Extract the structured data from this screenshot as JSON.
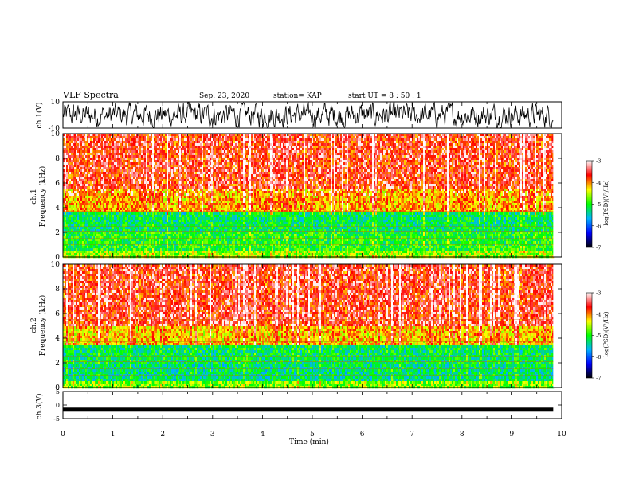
{
  "header": {
    "title": "VLF Spectra",
    "date": "Sep. 23, 2020",
    "station": "station= KAP",
    "start_ut": "start  UT =   8 : 50 : 1"
  },
  "chart_data": [
    {
      "type": "line",
      "panel": "ch1-waveform",
      "ylabel": "ch.1(V)",
      "ylim": [
        -10,
        10
      ],
      "y_ticks": [
        "10",
        "-10"
      ],
      "x_range_min": [
        0,
        9.83
      ],
      "note_values": "dense noisy waveform centred near 0 V oscillating mostly between -8 and 8 V"
    },
    {
      "type": "heatmap",
      "panel": "ch1-spectrogram",
      "ylabel": "ch.1\nFrequency  (kHz)",
      "ylabel_lines": [
        "ch.1",
        "Frequency  (kHz)"
      ],
      "ylim": [
        0,
        10
      ],
      "y_ticks": [
        "0",
        "2",
        "4",
        "6",
        "8",
        "10"
      ],
      "colorbar": {
        "label": "log(PSD)(V²/Hz)",
        "range": [
          -7,
          -3
        ],
        "ticks": [
          "-3",
          "-4",
          "-5",
          "-6",
          "-7"
        ],
        "colors": [
          "#000000",
          "#0000ff",
          "#00b4ff",
          "#00ff00",
          "#ffff00",
          "#ff0000",
          "#ffffff"
        ]
      },
      "bands": [
        {
          "from_khz": 0,
          "to_khz": 0.5,
          "level": -4.6
        },
        {
          "from_khz": 0.5,
          "to_khz": 2.2,
          "level": -5.0
        },
        {
          "from_khz": 2.2,
          "to_khz": 3.7,
          "level": -5.2
        },
        {
          "from_khz": 3.7,
          "to_khz": 5.5,
          "level": -4.1
        },
        {
          "from_khz": 5.5,
          "to_khz": 10,
          "level": -3.7
        }
      ]
    },
    {
      "type": "heatmap",
      "panel": "ch2-spectrogram",
      "ylabel": "ch.2\nFrequency  (kHz)",
      "ylabel_lines": [
        "ch.2",
        "Frequency  (kHz)"
      ],
      "ylim": [
        0,
        10
      ],
      "y_ticks": [
        "0",
        "2",
        "4",
        "6",
        "8",
        "10"
      ],
      "colorbar": {
        "label": "log(PSD)(V²/Hz)",
        "range": [
          -7,
          -3
        ],
        "ticks": [
          "-3",
          "-4",
          "-5",
          "-6",
          "-7"
        ],
        "colors": [
          "#000000",
          "#0000ff",
          "#00b4ff",
          "#00ff00",
          "#ffff00",
          "#ff0000",
          "#ffffff"
        ]
      },
      "bands": [
        {
          "from_khz": 0,
          "to_khz": 0.5,
          "level": -4.7
        },
        {
          "from_khz": 0.5,
          "to_khz": 2.0,
          "level": -5.3
        },
        {
          "from_khz": 2.0,
          "to_khz": 3.5,
          "level": -5.2
        },
        {
          "from_khz": 3.5,
          "to_khz": 5.0,
          "level": -4.2
        },
        {
          "from_khz": 5.0,
          "to_khz": 10,
          "level": -3.7
        }
      ]
    },
    {
      "type": "line",
      "panel": "ch3-waveform",
      "ylabel": "ch.3(V)",
      "ylim": [
        -5,
        5
      ],
      "y_ticks": [
        "5",
        "0",
        "-5"
      ],
      "x_range_min": [
        0,
        9.83
      ],
      "note_values": "thick flat band near -1.7 V"
    }
  ],
  "x_axis": {
    "label": "Time  (min)",
    "range": [
      0,
      10
    ],
    "ticks": [
      "0",
      "1",
      "2",
      "3",
      "4",
      "5",
      "6",
      "7",
      "8",
      "9",
      "10"
    ]
  }
}
